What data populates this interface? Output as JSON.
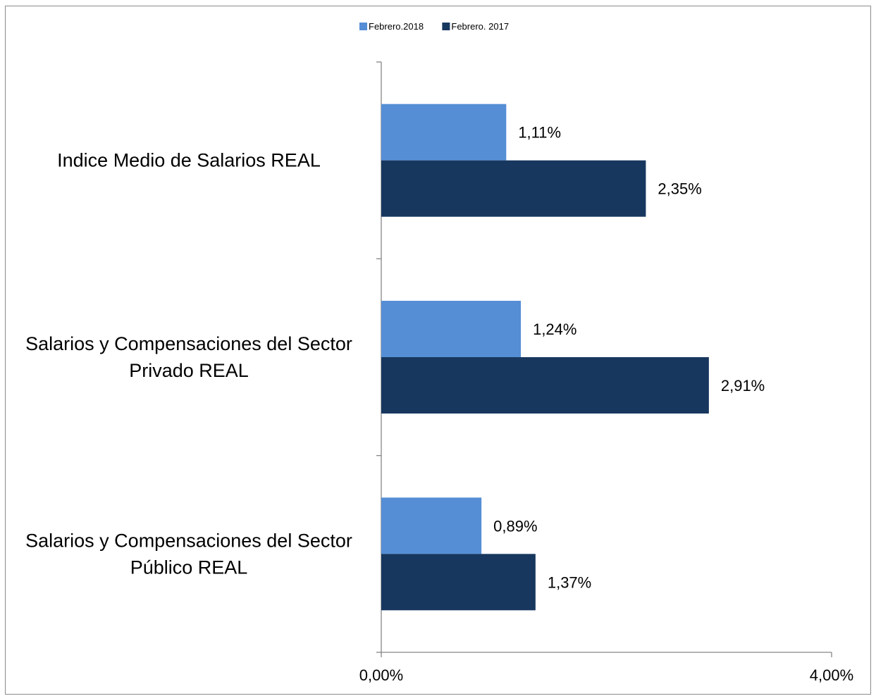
{
  "chart_data": {
    "type": "bar",
    "orientation": "horizontal",
    "title": "",
    "xlabel": "",
    "ylabel": "",
    "categories": [
      [
        "Indice Medio de Salarios REAL"
      ],
      [
        "Salarios y Compensaciones del Sector",
        "Privado REAL"
      ],
      [
        "Salarios y Compensaciones del Sector",
        "Público REAL"
      ]
    ],
    "series": [
      {
        "name": "Febrero.2018",
        "values": [
          1.11,
          1.24,
          0.89
        ],
        "labels": [
          "1,11%",
          "1,24%",
          "0,89%"
        ],
        "color": "#558ed5"
      },
      {
        "name": "Febrero. 2017",
        "values": [
          2.35,
          2.91,
          1.37
        ],
        "labels": [
          "2,35%",
          "2,91%",
          "1,37%"
        ],
        "color": "#17375e"
      }
    ],
    "xlim": [
      0,
      4
    ],
    "x_tick_labels": [
      "0,00%",
      "4,00%"
    ],
    "legend": {
      "position": "top"
    },
    "grid": false,
    "axis_color": "#868686"
  }
}
